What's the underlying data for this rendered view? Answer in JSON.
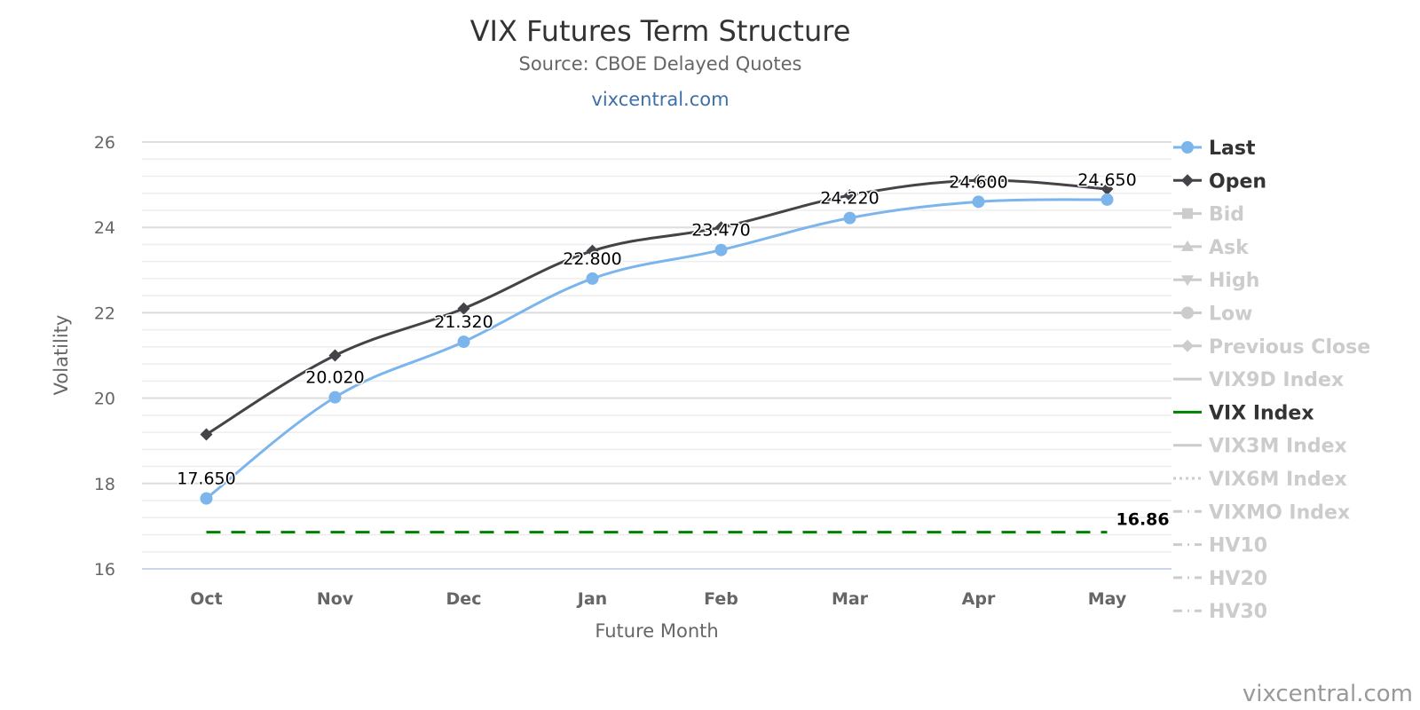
{
  "chart_data": {
    "type": "line",
    "title": "VIX Futures Term Structure",
    "subtitle": "Source: CBOE Delayed Quotes",
    "subtitle_link": "vixcentral.com",
    "xlabel": "Future Month",
    "ylabel": "Volatility",
    "categories": [
      "Oct",
      "Nov",
      "Dec",
      "Jan",
      "Feb",
      "Mar",
      "Apr",
      "May"
    ],
    "ylim": [
      16,
      26
    ],
    "yticks": [
      "16",
      "18",
      "20",
      "22",
      "24",
      "26"
    ],
    "grid": true,
    "legend_position": "right",
    "series": [
      {
        "name": "Last",
        "color": "#7cb5ec",
        "marker": "circle",
        "values": [
          17.65,
          20.02,
          21.32,
          22.8,
          23.47,
          24.22,
          24.6,
          24.65
        ],
        "labels": [
          "17.650",
          "20.020",
          "21.320",
          "22.800",
          "23.470",
          "24.220",
          "24.600",
          "24.650"
        ]
      },
      {
        "name": "Open",
        "color": "#434348",
        "marker": "diamond",
        "values": [
          19.15,
          21.0,
          22.1,
          23.45,
          24.0,
          24.75,
          25.1,
          24.9
        ]
      },
      {
        "name": "VIX Index",
        "color": "#008000",
        "dash": "dashed",
        "value": 16.86,
        "label": "16.86"
      }
    ],
    "legend": [
      {
        "name": "Last",
        "symbol": "circle-line",
        "color": "#7cb5ec",
        "active": true
      },
      {
        "name": "Open",
        "symbol": "diamond-line",
        "color": "#434348",
        "active": true
      },
      {
        "name": "Bid",
        "symbol": "square-line",
        "color": "#cccccc",
        "active": false
      },
      {
        "name": "Ask",
        "symbol": "triangle-line",
        "color": "#cccccc",
        "active": false
      },
      {
        "name": "High",
        "symbol": "triangle-down-line",
        "color": "#cccccc",
        "active": false
      },
      {
        "name": "Low",
        "symbol": "circle-line",
        "color": "#cccccc",
        "active": false
      },
      {
        "name": "Previous Close",
        "symbol": "diamond-line",
        "color": "#cccccc",
        "active": false
      },
      {
        "name": "VIX9D Index",
        "symbol": "solid-line",
        "color": "#cccccc",
        "active": false
      },
      {
        "name": "VIX Index",
        "symbol": "solid-line",
        "color": "#008000",
        "active": true
      },
      {
        "name": "VIX3M Index",
        "symbol": "solid-line",
        "color": "#cccccc",
        "active": false
      },
      {
        "name": "VIX6M Index",
        "symbol": "dotted-line",
        "color": "#cccccc",
        "active": false
      },
      {
        "name": "VIXMO Index",
        "symbol": "dashdot-line",
        "color": "#cccccc",
        "active": false
      },
      {
        "name": "HV10",
        "symbol": "dashdot-line",
        "color": "#cccccc",
        "active": false
      },
      {
        "name": "HV20",
        "symbol": "dashdot-line",
        "color": "#cccccc",
        "active": false
      },
      {
        "name": "HV30",
        "symbol": "dashdot-line",
        "color": "#cccccc",
        "active": false
      }
    ],
    "credit": "vixcentral.com"
  }
}
